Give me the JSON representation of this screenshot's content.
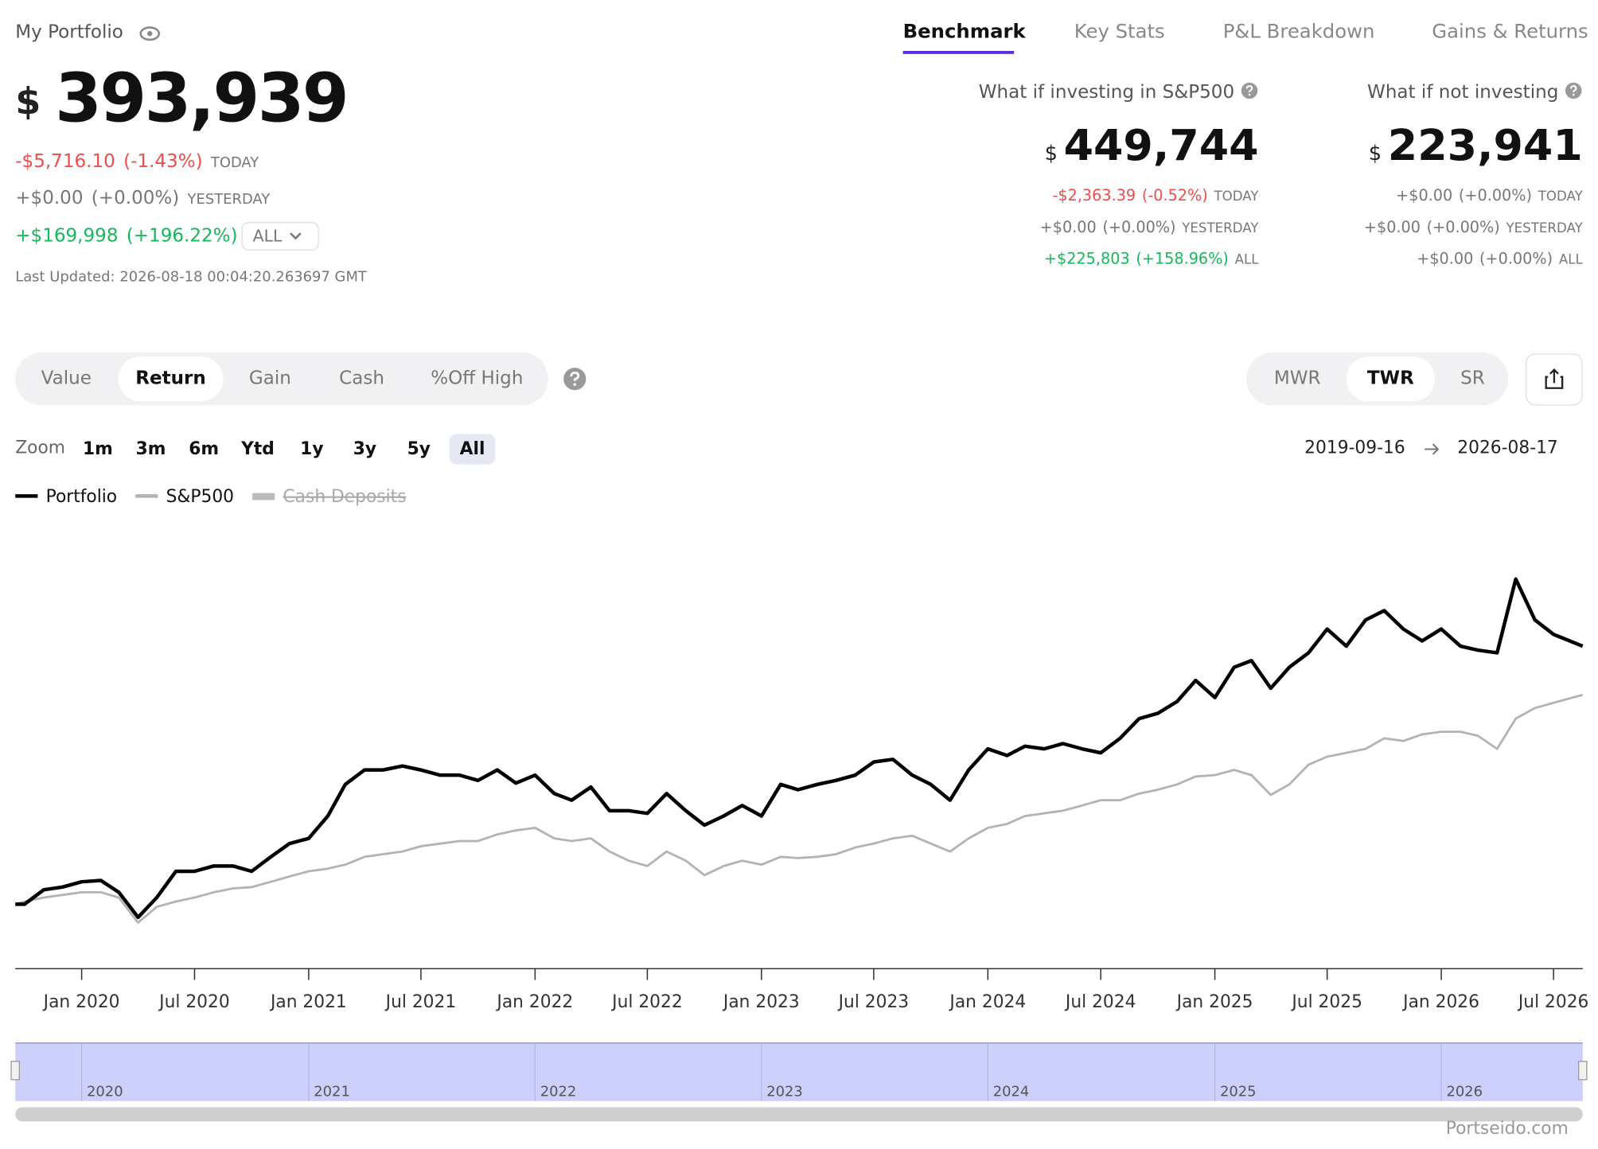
{
  "header": {
    "title": "My Portfolio",
    "currency": "$",
    "value": "393,939",
    "rows": [
      {
        "change": "-$5,716.10",
        "pct": "(-1.43%)",
        "period": "TODAY"
      },
      {
        "change": "+$0.00",
        "pct": "(+0.00%)",
        "period": "YESTERDAY"
      },
      {
        "change": "+$169,998",
        "pct": "(+196.22%)",
        "period": "ALL"
      }
    ],
    "updated": "Last Updated: 2026-08-18 00:04:20.263697 GMT"
  },
  "tabs": [
    "Benchmark",
    "Key Stats",
    "P&L Breakdown",
    "Gains & Returns"
  ],
  "panels": [
    {
      "title": "What if investing in S&P500",
      "currency": "$",
      "value": "449,744",
      "rows": [
        {
          "change": "-$2,363.39",
          "pct": "(-0.52%)",
          "period": "TODAY"
        },
        {
          "change": "+$0.00",
          "pct": "(+0.00%)",
          "period": "YESTERDAY"
        },
        {
          "change": "+$225,803",
          "pct": "(+158.96%)",
          "period": "ALL"
        }
      ]
    },
    {
      "title": "What if not investing",
      "currency": "$",
      "value": "223,941",
      "rows": [
        {
          "change": "+$0.00",
          "pct": "(+0.00%)",
          "period": "TODAY"
        },
        {
          "change": "+$0.00",
          "pct": "(+0.00%)",
          "period": "YESTERDAY"
        },
        {
          "change": "+$0.00",
          "pct": "(+0.00%)",
          "period": "ALL"
        }
      ]
    }
  ],
  "modes": [
    "Value",
    "Return",
    "Gain",
    "Cash",
    "%Off High"
  ],
  "methods": [
    "MWR",
    "TWR",
    "SR"
  ],
  "zoom": {
    "label": "Zoom",
    "options": [
      "1m",
      "3m",
      "6m",
      "Ytd",
      "1y",
      "3y",
      "5y",
      "All"
    ]
  },
  "date_range": {
    "from": "2019-09-16",
    "to": "2026-08-17"
  },
  "legend_hidden": [
    "Cash Deposits"
  ],
  "watermark": "Portseido.com",
  "chart_data": {
    "type": "line",
    "x": [
      "2019-09-16",
      "2019-10",
      "2019-11",
      "2019-12",
      "2020-01",
      "2020-02",
      "2020-03",
      "2020-04",
      "2020-05",
      "2020-06",
      "2020-07",
      "2020-08",
      "2020-09",
      "2020-10",
      "2020-11",
      "2020-12",
      "2021-01",
      "2021-02",
      "2021-03",
      "2021-04",
      "2021-05",
      "2021-06",
      "2021-07",
      "2021-08",
      "2021-09",
      "2021-10",
      "2021-11",
      "2021-12",
      "2022-01",
      "2022-02",
      "2022-03",
      "2022-04",
      "2022-05",
      "2022-06",
      "2022-07",
      "2022-08",
      "2022-09",
      "2022-10",
      "2022-11",
      "2022-12",
      "2023-01",
      "2023-02",
      "2023-03",
      "2023-04",
      "2023-05",
      "2023-06",
      "2023-07",
      "2023-08",
      "2023-09",
      "2023-10",
      "2023-11",
      "2023-12",
      "2024-01",
      "2024-02",
      "2024-03",
      "2024-04",
      "2024-05",
      "2024-06",
      "2024-07",
      "2024-08",
      "2024-09",
      "2024-10",
      "2024-11",
      "2024-12",
      "2025-01",
      "2025-02",
      "2025-03",
      "2025-04",
      "2025-05",
      "2025-06",
      "2025-07",
      "2025-08",
      "2025-09",
      "2025-10",
      "2025-11",
      "2025-12",
      "2026-01",
      "2026-02",
      "2026-03",
      "2026-04",
      "2026-05",
      "2026-06",
      "2026-07",
      "2026-08-17"
    ],
    "series": [
      {
        "name": "Portfolio",
        "color": "#000000",
        "values": [
          0,
          0,
          11,
          13,
          17,
          18,
          9,
          -10,
          5,
          25,
          25,
          29,
          29,
          25,
          36,
          46,
          50,
          67,
          91,
          102,
          102,
          105,
          102,
          98,
          98,
          94,
          102,
          92,
          98,
          84,
          79,
          89,
          71,
          71,
          69,
          84,
          71,
          60,
          67,
          75,
          67,
          91,
          87,
          91,
          94,
          98,
          108,
          110,
          98,
          91,
          79,
          102,
          118,
          113,
          120,
          118,
          122,
          118,
          115,
          126,
          141,
          145,
          154,
          170,
          157,
          180,
          185,
          164,
          180,
          191,
          209,
          196,
          216,
          223,
          209,
          200,
          209,
          196,
          193,
          191,
          247,
          216,
          205,
          196
        ]
      },
      {
        "name": "S&P500",
        "color": "#b3b3b3",
        "values": [
          0,
          2,
          5,
          7,
          9,
          9,
          5,
          -14,
          -2,
          2,
          5,
          9,
          12,
          13,
          17,
          21,
          25,
          27,
          30,
          36,
          38,
          40,
          44,
          46,
          48,
          48,
          53,
          56,
          58,
          50,
          48,
          50,
          40,
          33,
          29,
          40,
          33,
          22,
          29,
          33,
          30,
          36,
          35,
          36,
          38,
          43,
          46,
          50,
          52,
          46,
          40,
          50,
          58,
          61,
          67,
          69,
          71,
          75,
          79,
          79,
          84,
          87,
          91,
          97,
          98,
          102,
          98,
          83,
          91,
          106,
          112,
          115,
          118,
          126,
          124,
          129,
          131,
          131,
          128,
          118,
          141,
          149,
          153,
          159
        ]
      }
    ],
    "xlim": [
      "2019-09-16",
      "2026-08-17"
    ],
    "ylim": [
      -49,
      300
    ],
    "xticks": [
      {
        "value": "2020-01",
        "label": "Jan 2020"
      },
      {
        "value": "2020-07",
        "label": "Jul 2020"
      },
      {
        "value": "2021-01",
        "label": "Jan 2021"
      },
      {
        "value": "2021-07",
        "label": "Jul 2021"
      },
      {
        "value": "2022-01",
        "label": "Jan 2022"
      },
      {
        "value": "2022-07",
        "label": "Jul 2022"
      },
      {
        "value": "2023-01",
        "label": "Jan 2023"
      },
      {
        "value": "2023-07",
        "label": "Jul 2023"
      },
      {
        "value": "2024-01",
        "label": "Jan 2024"
      },
      {
        "value": "2024-07",
        "label": "Jul 2024"
      },
      {
        "value": "2025-01",
        "label": "Jan 2025"
      },
      {
        "value": "2025-07",
        "label": "Jul 2025"
      },
      {
        "value": "2026-01",
        "label": "Jan 2026"
      },
      {
        "value": "2026-07",
        "label": "Jul 2026"
      }
    ],
    "navigator_ticks": [
      {
        "value": "2020-01",
        "label": "2020"
      },
      {
        "value": "2021-01",
        "label": "2021"
      },
      {
        "value": "2022-01",
        "label": "2022"
      },
      {
        "value": "2023-01",
        "label": "2023"
      },
      {
        "value": "2024-01",
        "label": "2024"
      },
      {
        "value": "2025-01",
        "label": "2025"
      },
      {
        "value": "2026-01",
        "label": "2026"
      }
    ],
    "grid": false
  }
}
